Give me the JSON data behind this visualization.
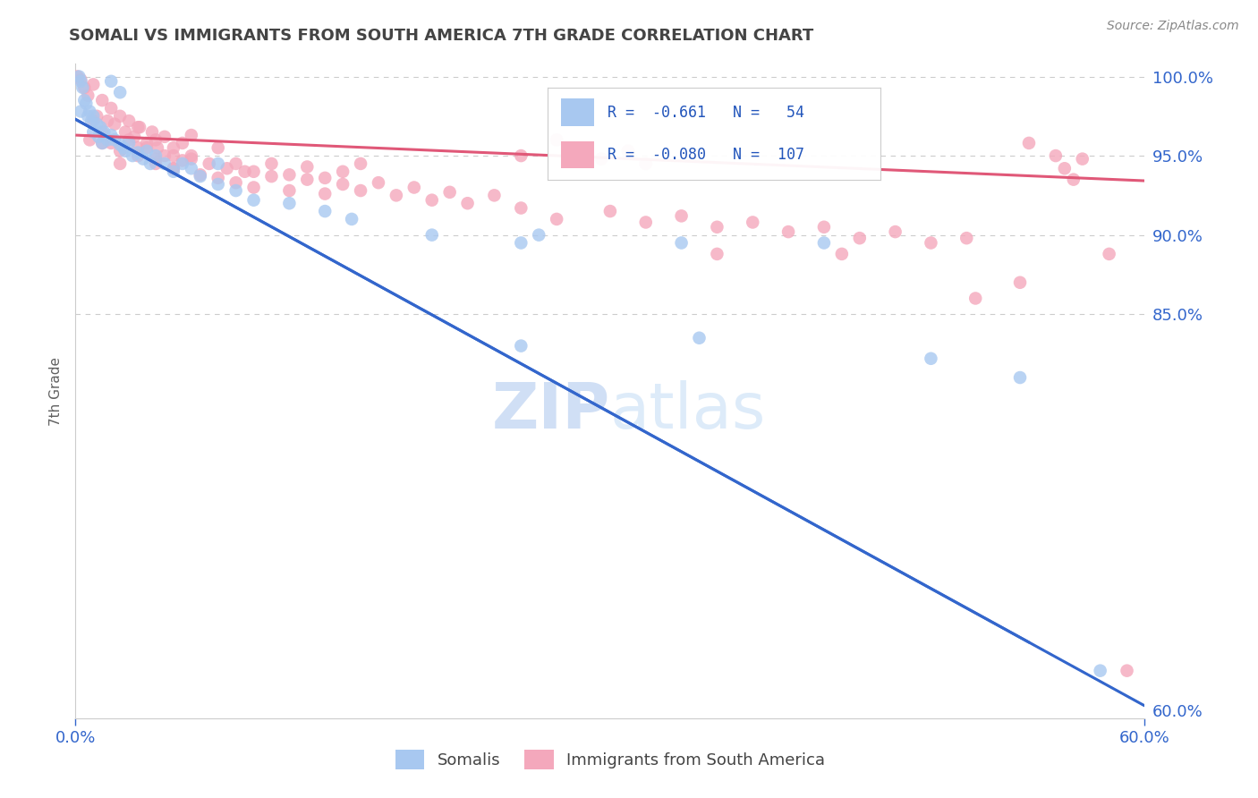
{
  "title": "SOMALI VS IMMIGRANTS FROM SOUTH AMERICA 7TH GRADE CORRELATION CHART",
  "source": "Source: ZipAtlas.com",
  "ylabel": "7th Grade",
  "xmin": 0.0,
  "xmax": 0.6,
  "ymin": 0.595,
  "ymax": 1.008,
  "yticks": [
    0.6,
    0.85,
    0.9,
    0.95,
    1.0
  ],
  "ytick_labels": [
    "60.0%",
    "85.0%",
    "90.0%",
    "95.0%",
    "100.0%"
  ],
  "blue_color": "#A8C8F0",
  "pink_color": "#F4A8BC",
  "blue_line_color": "#3366CC",
  "pink_line_color": "#E05878",
  "watermark_color": "#C8D8F0",
  "grid_color": "#CCCCCC",
  "title_color": "#444444",
  "blue_intercept": 0.973,
  "blue_slope": -0.617,
  "pink_intercept": 0.963,
  "pink_slope": -0.048,
  "blue_points": [
    [
      0.002,
      1.0
    ],
    [
      0.003,
      0.997
    ],
    [
      0.004,
      0.993
    ],
    [
      0.005,
      0.985
    ],
    [
      0.006,
      0.983
    ],
    [
      0.003,
      0.978
    ],
    [
      0.008,
      0.978
    ],
    [
      0.007,
      0.975
    ],
    [
      0.009,
      0.972
    ],
    [
      0.01,
      0.975
    ],
    [
      0.012,
      0.97
    ],
    [
      0.014,
      0.968
    ],
    [
      0.01,
      0.965
    ],
    [
      0.013,
      0.962
    ],
    [
      0.016,
      0.965
    ],
    [
      0.018,
      0.96
    ],
    [
      0.02,
      0.963
    ],
    [
      0.015,
      0.958
    ],
    [
      0.022,
      0.96
    ],
    [
      0.025,
      0.957
    ],
    [
      0.027,
      0.955
    ],
    [
      0.03,
      0.958
    ],
    [
      0.028,
      0.953
    ],
    [
      0.032,
      0.95
    ],
    [
      0.035,
      0.952
    ],
    [
      0.038,
      0.948
    ],
    [
      0.04,
      0.953
    ],
    [
      0.042,
      0.945
    ],
    [
      0.045,
      0.95
    ],
    [
      0.05,
      0.945
    ],
    [
      0.055,
      0.94
    ],
    [
      0.06,
      0.945
    ],
    [
      0.065,
      0.942
    ],
    [
      0.07,
      0.937
    ],
    [
      0.08,
      0.932
    ],
    [
      0.09,
      0.928
    ],
    [
      0.1,
      0.922
    ],
    [
      0.12,
      0.92
    ],
    [
      0.14,
      0.915
    ],
    [
      0.155,
      0.91
    ],
    [
      0.08,
      0.945
    ],
    [
      0.02,
      0.997
    ],
    [
      0.025,
      0.99
    ],
    [
      0.2,
      0.9
    ],
    [
      0.25,
      0.895
    ],
    [
      0.26,
      0.9
    ],
    [
      0.34,
      0.895
    ],
    [
      0.42,
      0.895
    ],
    [
      0.35,
      0.835
    ],
    [
      0.48,
      0.822
    ],
    [
      0.53,
      0.81
    ],
    [
      0.575,
      0.625
    ],
    [
      0.25,
      0.83
    ]
  ],
  "pink_points": [
    [
      0.001,
      1.0
    ],
    [
      0.003,
      0.998
    ],
    [
      0.005,
      0.993
    ],
    [
      0.007,
      0.988
    ],
    [
      0.01,
      0.995
    ],
    [
      0.012,
      0.975
    ],
    [
      0.015,
      0.985
    ],
    [
      0.018,
      0.972
    ],
    [
      0.02,
      0.98
    ],
    [
      0.022,
      0.97
    ],
    [
      0.025,
      0.975
    ],
    [
      0.028,
      0.965
    ],
    [
      0.03,
      0.972
    ],
    [
      0.033,
      0.962
    ],
    [
      0.036,
      0.968
    ],
    [
      0.04,
      0.958
    ],
    [
      0.043,
      0.965
    ],
    [
      0.046,
      0.955
    ],
    [
      0.05,
      0.962
    ],
    [
      0.055,
      0.95
    ],
    [
      0.06,
      0.958
    ],
    [
      0.065,
      0.948
    ],
    [
      0.01,
      0.972
    ],
    [
      0.015,
      0.965
    ],
    [
      0.02,
      0.958
    ],
    [
      0.025,
      0.953
    ],
    [
      0.03,
      0.96
    ],
    [
      0.035,
      0.95
    ],
    [
      0.04,
      0.955
    ],
    [
      0.045,
      0.945
    ],
    [
      0.05,
      0.95
    ],
    [
      0.055,
      0.942
    ],
    [
      0.06,
      0.947
    ],
    [
      0.07,
      0.938
    ],
    [
      0.075,
      0.945
    ],
    [
      0.08,
      0.936
    ],
    [
      0.085,
      0.942
    ],
    [
      0.09,
      0.933
    ],
    [
      0.095,
      0.94
    ],
    [
      0.1,
      0.93
    ],
    [
      0.11,
      0.937
    ],
    [
      0.12,
      0.928
    ],
    [
      0.13,
      0.935
    ],
    [
      0.14,
      0.926
    ],
    [
      0.15,
      0.932
    ],
    [
      0.008,
      0.96
    ],
    [
      0.065,
      0.963
    ],
    [
      0.08,
      0.955
    ],
    [
      0.035,
      0.968
    ],
    [
      0.045,
      0.96
    ],
    [
      0.055,
      0.955
    ],
    [
      0.16,
      0.928
    ],
    [
      0.17,
      0.933
    ],
    [
      0.18,
      0.925
    ],
    [
      0.19,
      0.93
    ],
    [
      0.2,
      0.922
    ],
    [
      0.21,
      0.927
    ],
    [
      0.22,
      0.92
    ],
    [
      0.235,
      0.925
    ],
    [
      0.16,
      0.945
    ],
    [
      0.25,
      0.95
    ],
    [
      0.27,
      0.96
    ],
    [
      0.28,
      0.955
    ],
    [
      0.295,
      0.948
    ],
    [
      0.31,
      0.953
    ],
    [
      0.32,
      0.945
    ],
    [
      0.25,
      0.917
    ],
    [
      0.27,
      0.91
    ],
    [
      0.3,
      0.915
    ],
    [
      0.32,
      0.908
    ],
    [
      0.34,
      0.912
    ],
    [
      0.36,
      0.905
    ],
    [
      0.38,
      0.908
    ],
    [
      0.4,
      0.902
    ],
    [
      0.42,
      0.905
    ],
    [
      0.44,
      0.898
    ],
    [
      0.46,
      0.902
    ],
    [
      0.48,
      0.895
    ],
    [
      0.5,
      0.898
    ],
    [
      0.505,
      0.86
    ],
    [
      0.43,
      0.888
    ],
    [
      0.53,
      0.87
    ],
    [
      0.535,
      0.958
    ],
    [
      0.55,
      0.95
    ],
    [
      0.555,
      0.942
    ],
    [
      0.56,
      0.935
    ],
    [
      0.565,
      0.948
    ],
    [
      0.015,
      0.958
    ],
    [
      0.025,
      0.945
    ],
    [
      0.035,
      0.955
    ],
    [
      0.045,
      0.948
    ],
    [
      0.055,
      0.942
    ],
    [
      0.065,
      0.95
    ],
    [
      0.09,
      0.945
    ],
    [
      0.1,
      0.94
    ],
    [
      0.11,
      0.945
    ],
    [
      0.12,
      0.938
    ],
    [
      0.13,
      0.943
    ],
    [
      0.14,
      0.936
    ],
    [
      0.15,
      0.94
    ],
    [
      0.36,
      0.888
    ],
    [
      0.58,
      0.888
    ],
    [
      0.59,
      0.625
    ]
  ]
}
